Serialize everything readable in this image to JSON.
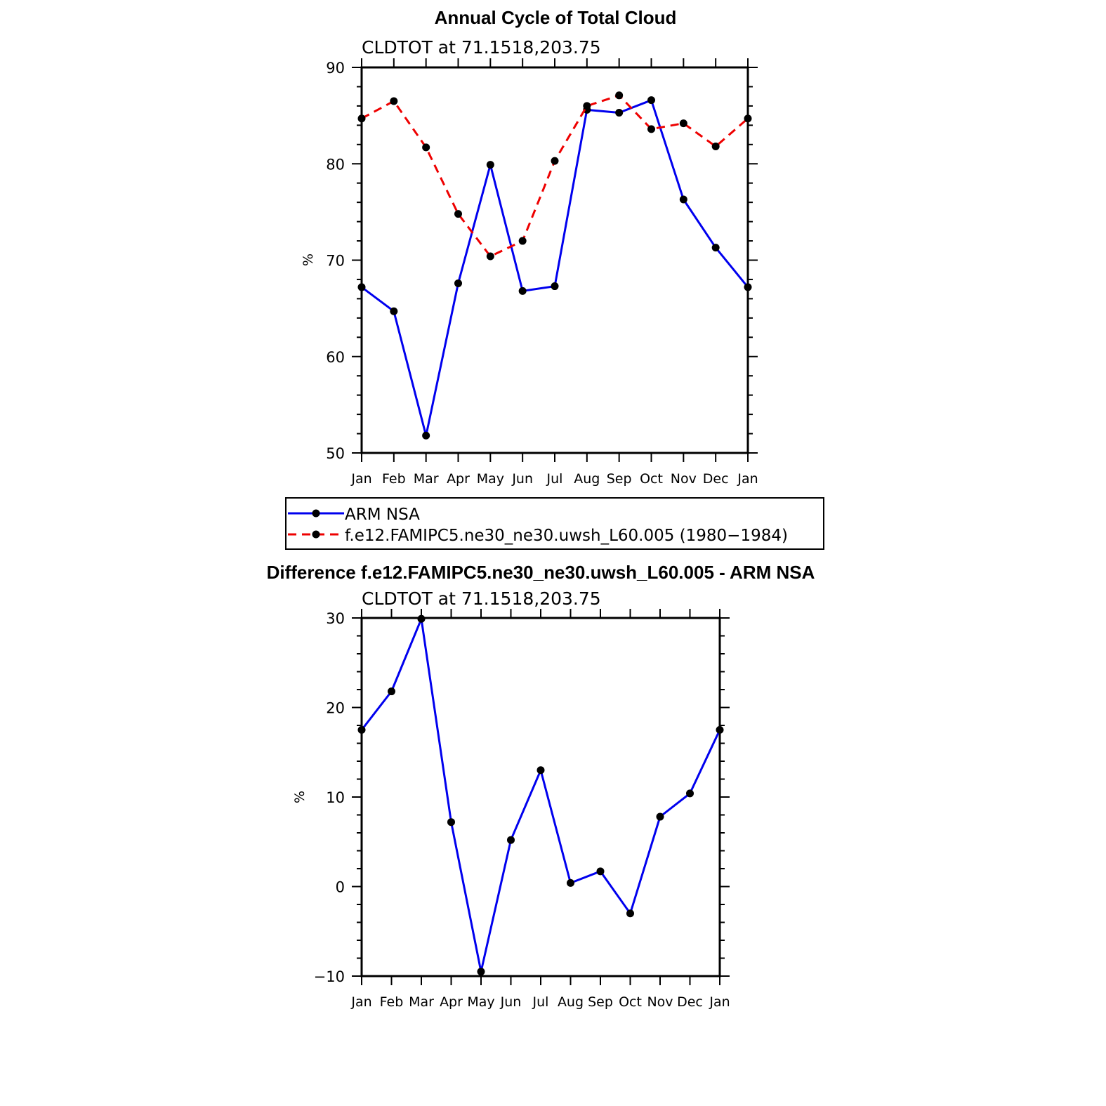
{
  "chart_data": [
    {
      "type": "line",
      "title": "Annual Cycle of Total Cloud",
      "subtitle": "CLDTOT  at  71.1518,203.75",
      "ylabel": "%",
      "xlabel": "",
      "categories": [
        "Jan",
        "Feb",
        "Mar",
        "Apr",
        "May",
        "Jun",
        "Jul",
        "Aug",
        "Sep",
        "Oct",
        "Nov",
        "Dec",
        "Jan"
      ],
      "ylim": [
        50,
        90
      ],
      "yticks": [
        "50",
        "60",
        "70",
        "80",
        "90"
      ],
      "ytick_values": [
        50,
        60,
        70,
        80,
        90
      ],
      "grid": false,
      "legend_position": "below",
      "series": [
        {
          "name": "ARM  NSA",
          "color": "#0000ee",
          "dash": "solid",
          "values": [
            67.2,
            64.7,
            51.8,
            67.6,
            79.9,
            66.8,
            67.3,
            85.6,
            85.3,
            86.6,
            76.3,
            71.3,
            67.2
          ]
        },
        {
          "name": "f.e12.FAMIPC5.ne30_ne30.uwsh_L60.005  (1980−1984)",
          "color": "#ee0000",
          "dash": "dashed",
          "values": [
            84.7,
            86.5,
            81.7,
            74.8,
            70.4,
            72.0,
            80.3,
            86.0,
            87.1,
            83.6,
            84.2,
            81.8,
            84.7
          ]
        }
      ]
    },
    {
      "type": "line",
      "title": "Difference f.e12.FAMIPC5.ne30_ne30.uwsh_L60.005 - ARM NSA",
      "subtitle": "CLDTOT  at  71.1518,203.75",
      "ylabel": "%",
      "xlabel": "",
      "categories": [
        "Jan",
        "Feb",
        "Mar",
        "Apr",
        "May",
        "Jun",
        "Jul",
        "Aug",
        "Sep",
        "Oct",
        "Nov",
        "Dec",
        "Jan"
      ],
      "ylim": [
        -10,
        30
      ],
      "yticks": [
        "−10",
        "0",
        "10",
        "20",
        "30"
      ],
      "ytick_values": [
        -10,
        0,
        10,
        20,
        30
      ],
      "grid": false,
      "series": [
        {
          "name": "Difference",
          "color": "#0000ee",
          "dash": "solid",
          "values": [
            17.5,
            21.8,
            29.9,
            7.2,
            -9.5,
            5.2,
            13.0,
            0.4,
            1.7,
            -3.0,
            7.8,
            10.4,
            17.5
          ]
        }
      ]
    }
  ]
}
